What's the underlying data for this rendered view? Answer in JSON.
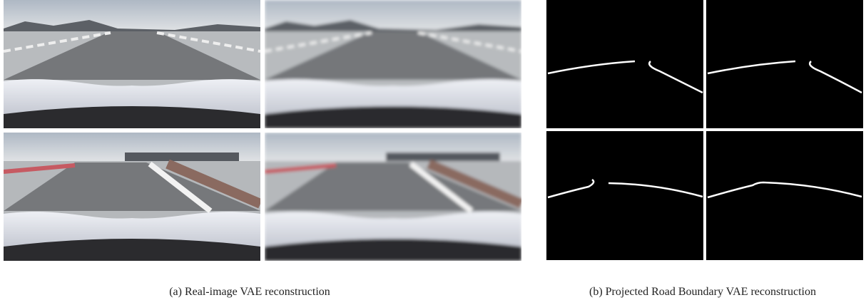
{
  "panel_a": {
    "caption": "(a) Real-image VAE reconstruction"
  },
  "panel_b": {
    "caption": "(b) Projected Road Boundary VAE reconstruction"
  }
}
